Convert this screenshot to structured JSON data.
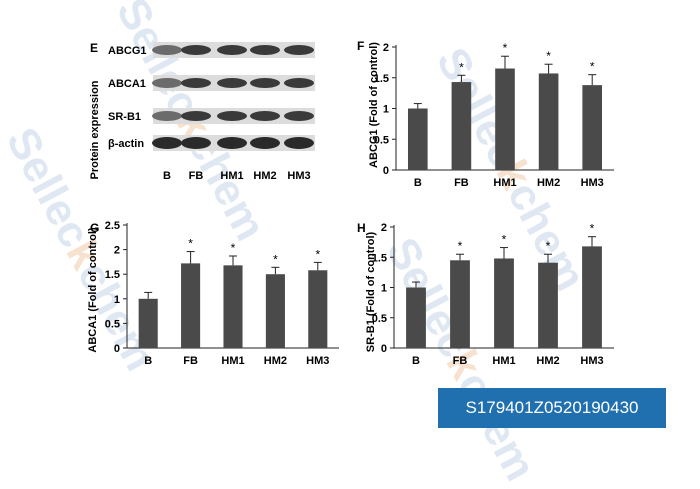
{
  "watermark": {
    "text": "Selleckchem"
  },
  "id_badge": "S179401Z0520190430",
  "western_blot": {
    "panel": "E",
    "ylabel": "Protein expression",
    "bands": [
      "ABCG1",
      "ABCA1",
      "SR-B1",
      "β-actin"
    ],
    "lanes": [
      "B",
      "FB",
      "HM1",
      "HM2",
      "HM3"
    ]
  },
  "chart_data": [
    {
      "panel": "F",
      "type": "bar",
      "categories": [
        "B",
        "FB",
        "HM1",
        "HM2",
        "HM3"
      ],
      "values": [
        1.0,
        1.43,
        1.65,
        1.57,
        1.38
      ],
      "errors": [
        0.08,
        0.11,
        0.2,
        0.15,
        0.17
      ],
      "significant": [
        "",
        "*",
        "*",
        "*",
        "*"
      ],
      "xlabel": "",
      "ylabel": "ABCG1 (Fold of control)",
      "ylim": [
        0,
        2
      ],
      "yticks": [
        "0",
        "0.5",
        "1",
        "1.5",
        "2"
      ],
      "ytick_values": [
        0,
        0.5,
        1,
        1.5,
        2
      ]
    },
    {
      "panel": "G",
      "type": "bar",
      "categories": [
        "B",
        "FB",
        "HM1",
        "HM2",
        "HM3"
      ],
      "values": [
        1.0,
        1.72,
        1.68,
        1.5,
        1.58
      ],
      "errors": [
        0.13,
        0.24,
        0.19,
        0.14,
        0.16
      ],
      "significant": [
        "",
        "*",
        "*",
        "*",
        "*"
      ],
      "xlabel": "",
      "ylabel": "ABCA1 (Fold of control)",
      "ylim": [
        0,
        2.5
      ],
      "yticks": [
        "0",
        "0.5",
        "1",
        "1.5",
        "2",
        "2.5"
      ],
      "ytick_values": [
        0,
        0.5,
        1,
        1.5,
        2,
        2.5
      ]
    },
    {
      "panel": "H",
      "type": "bar",
      "categories": [
        "B",
        "FB",
        "HM1",
        "HM2",
        "HM3"
      ],
      "values": [
        1.0,
        1.45,
        1.48,
        1.41,
        1.68
      ],
      "errors": [
        0.09,
        0.1,
        0.18,
        0.14,
        0.16
      ],
      "significant": [
        "",
        "*",
        "*",
        "*",
        "*"
      ],
      "xlabel": "",
      "ylabel": "SR-B1 (Fold of control)",
      "ylim": [
        0,
        2
      ],
      "yticks": [
        "0",
        "0.5",
        "1",
        "1.5",
        "2"
      ],
      "ytick_values": [
        0,
        0.5,
        1,
        1.5,
        2
      ]
    }
  ]
}
